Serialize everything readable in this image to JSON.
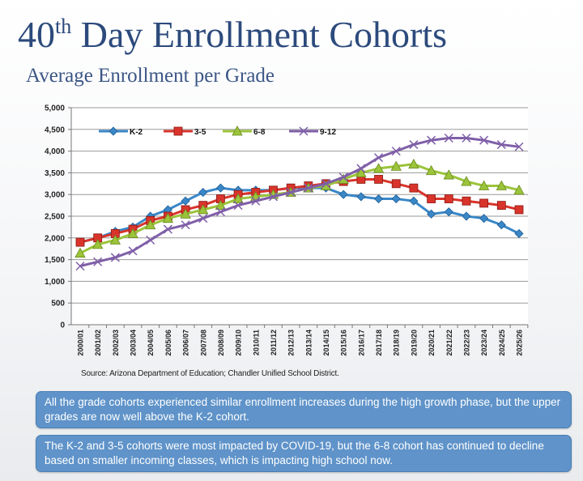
{
  "title": {
    "number": "40",
    "superscript": "th",
    "text": " Day Enrollment Cohorts"
  },
  "subtitle": "Average Enrollment per Grade",
  "source": "Source: Arizona Department of Education; Chandler Unified School District.",
  "notes": [
    "All the grade cohorts experienced similar enrollment increases during the high growth phase, but the upper grades are now well above the K-2 cohort.",
    "The K-2 and 3-5 cohorts were most impacted by COVID-19, but the 6-8 cohort has continued to decline based on smaller incoming classes, which is impacting high school now."
  ],
  "chart_data": {
    "type": "line",
    "title": "",
    "xlabel": "",
    "ylabel": "",
    "ylim": [
      0,
      5000
    ],
    "yticks": [
      "0",
      "500",
      "1,000",
      "1,500",
      "2,000",
      "2,500",
      "3,000",
      "3,500",
      "4,000",
      "4,500",
      "5,000"
    ],
    "grid": true,
    "legend": "top",
    "categories": [
      "2000/01",
      "2001/02",
      "2002/03",
      "2003/04",
      "2004/05",
      "2005/06",
      "2006/07",
      "2007/08",
      "2008/09",
      "2009/10",
      "2010/11",
      "2011/12",
      "2012/13",
      "2013/14",
      "2014/15",
      "2015/16",
      "2016/17",
      "2017/18",
      "2018/19",
      "2019/20",
      "2020/21",
      "2021/22",
      "2022/23",
      "2023/24",
      "2024/25",
      "2025/26"
    ],
    "series": [
      {
        "name": "K-2",
        "color": "#3a87c8",
        "marker": "diamond",
        "values": [
          1900,
          2000,
          2150,
          2250,
          2500,
          2650,
          2850,
          3050,
          3150,
          3100,
          3100,
          3100,
          3150,
          3150,
          3150,
          3000,
          2950,
          2900,
          2900,
          2850,
          2550,
          2600,
          2500,
          2450,
          2300,
          2100
        ]
      },
      {
        "name": "3-5",
        "color": "#d9342b",
        "marker": "square",
        "values": [
          1900,
          2000,
          2100,
          2200,
          2400,
          2500,
          2650,
          2750,
          2900,
          3000,
          3050,
          3100,
          3150,
          3200,
          3250,
          3300,
          3350,
          3350,
          3250,
          3150,
          2900,
          2900,
          2850,
          2800,
          2750,
          2650
        ]
      },
      {
        "name": "6-8",
        "color": "#9bc43a",
        "marker": "triangle",
        "values": [
          1650,
          1850,
          1950,
          2100,
          2300,
          2450,
          2550,
          2650,
          2750,
          2900,
          2950,
          3000,
          3050,
          3150,
          3200,
          3350,
          3500,
          3600,
          3650,
          3700,
          3550,
          3450,
          3300,
          3200,
          3200,
          3100
        ]
      },
      {
        "name": "9-12",
        "color": "#7f5fa8",
        "marker": "x",
        "values": [
          1350,
          1450,
          1550,
          1700,
          1950,
          2200,
          2300,
          2450,
          2600,
          2750,
          2850,
          2950,
          3050,
          3150,
          3250,
          3400,
          3600,
          3850,
          4000,
          4150,
          4250,
          4300,
          4300,
          4250,
          4150,
          4100
        ]
      }
    ]
  }
}
